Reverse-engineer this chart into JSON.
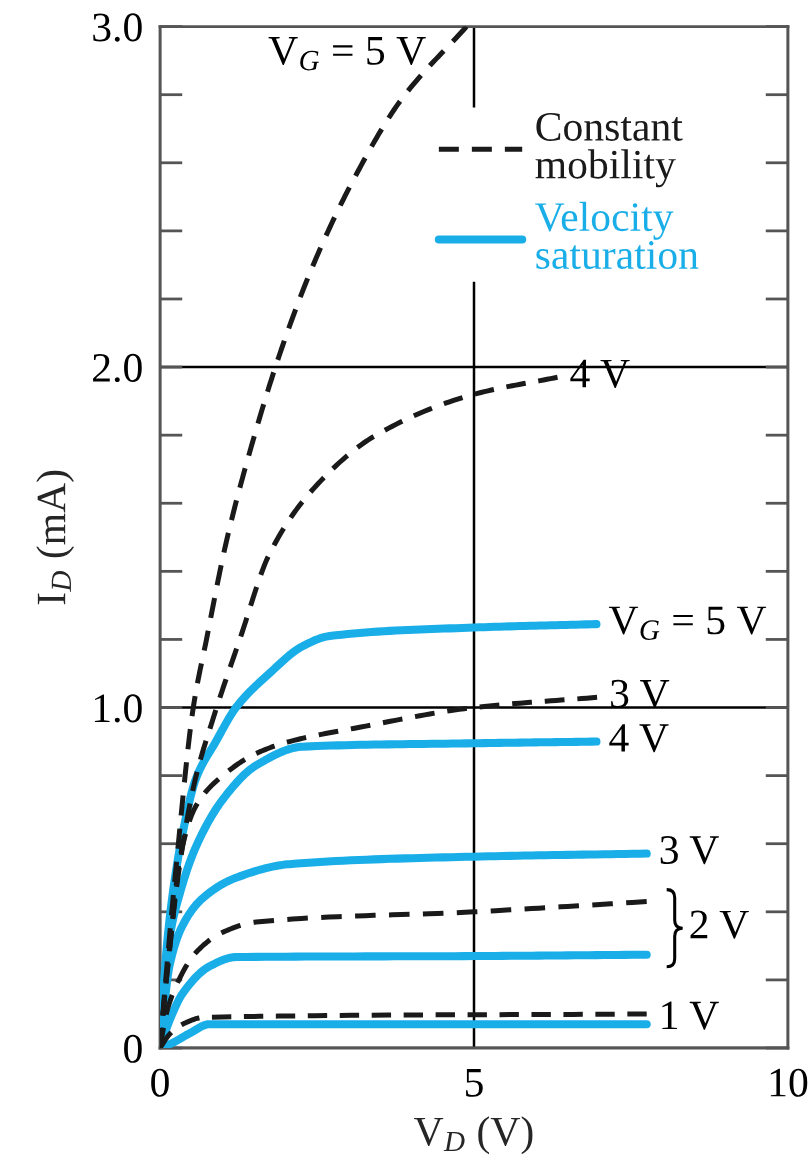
{
  "chart_data": {
    "type": "line",
    "xlabel": "V$_{D}$ (V)",
    "ylabel": "I$_{D}$ (mA)",
    "xlim": [
      0,
      10
    ],
    "ylim": [
      0,
      3
    ],
    "xticks": [
      0,
      5,
      10
    ],
    "yticks": [
      0,
      {
        "value": 0.2,
        "label": null
      },
      {
        "value": 0.4,
        "label": null
      },
      {
        "value": 0.6,
        "label": null
      },
      {
        "value": 0.8,
        "label": null
      },
      {
        "value": 1,
        "label": "1.0"
      },
      {
        "value": 1.2,
        "label": null
      },
      {
        "value": 1.4,
        "label": null
      },
      {
        "value": 1.6,
        "label": null
      },
      {
        "value": 1.8,
        "label": null
      },
      {
        "value": 2,
        "label": "2.0"
      },
      {
        "value": 2.2,
        "label": null
      },
      {
        "value": 2.4,
        "label": null
      },
      {
        "value": 2.6,
        "label": null
      },
      {
        "value": 2.8,
        "label": null
      },
      {
        "value": 3,
        "label": "3.0"
      }
    ],
    "grid": true,
    "legend": "top right",
    "marker": "none",
    "series": [
      {
        "name": "Constant\nmobility",
        "color": "#1a1a1a",
        "line_style": "dashed",
        "x": [
          0,
          0.1,
          0.25,
          0.53,
          0.74,
          1.06,
          1.49,
          1.91,
          2.44,
          3.08,
          3.82,
          4.88
        ],
        "values": [
          0,
          0.22,
          0.52,
          1.0,
          1.2,
          1.49,
          1.79,
          2.04,
          2.3,
          2.55,
          2.78,
          3.0
        ]
      },
      {
        "color": "#1a1a1a",
        "line_style": "dashed",
        "x": [
          0,
          0.1,
          0.3,
          0.55,
          0.85,
          1.27,
          1.74,
          2.48,
          3.44,
          5.0,
          6.33
        ],
        "values": [
          0,
          0.2,
          0.52,
          0.78,
          0.97,
          1.2,
          1.45,
          1.65,
          1.8,
          1.92,
          1.97
        ]
      },
      {
        "color": "#1a1a1a",
        "line_style": "dashed",
        "x": [
          0,
          0.08,
          0.16,
          0.31,
          0.57,
          1.0,
          1.53,
          2.06,
          3.12,
          5.0,
          6.96
        ],
        "values": [
          0,
          0.16,
          0.3,
          0.55,
          0.71,
          0.8,
          0.865,
          0.9,
          0.94,
          1.0,
          1.03
        ]
      },
      {
        "color": "#1a1a1a",
        "line_style": "dashed",
        "x": [
          0,
          0.1,
          0.25,
          0.57,
          1.0,
          1.53,
          5.0,
          7.75
        ],
        "values": [
          0,
          0.1,
          0.18,
          0.28,
          0.34,
          0.37,
          0.4,
          0.43
        ]
      },
      {
        "color": "#1a1a1a",
        "line_style": "dashed",
        "x": [
          0,
          0.15,
          0.36,
          0.7,
          7.75
        ],
        "values": [
          0,
          0.04,
          0.07,
          0.09,
          0.1
        ]
      },
      {
        "name": "Velocity\nsaturation",
        "color": "#19aee8",
        "line_style": "solid",
        "x": [
          0,
          0.1,
          0.2,
          0.36,
          0.57,
          0.89,
          1.21,
          1.74,
          2.27,
          2.7,
          5.0,
          6.95
        ],
        "values": [
          0,
          0.28,
          0.45,
          0.63,
          0.79,
          0.9,
          1.0,
          1.1,
          1.18,
          1.21,
          1.235,
          1.245
        ]
      },
      {
        "color": "#19aee8",
        "line_style": "solid",
        "x": [
          0,
          0.15,
          0.31,
          0.57,
          1.0,
          1.53,
          2.27,
          5.0,
          6.95
        ],
        "values": [
          0,
          0.32,
          0.45,
          0.59,
          0.73,
          0.83,
          0.885,
          0.895,
          0.9
        ]
      },
      {
        "color": "#19aee8",
        "line_style": "solid",
        "x": [
          0,
          0.15,
          0.36,
          0.68,
          1.21,
          2.06,
          5.0,
          7.75
        ],
        "values": [
          0,
          0.24,
          0.36,
          0.44,
          0.5,
          0.54,
          0.562,
          0.571
        ]
      },
      {
        "color": "#19aee8",
        "line_style": "solid",
        "x": [
          0,
          0.15,
          0.36,
          0.79,
          1.21,
          5.0,
          7.75
        ],
        "values": [
          0,
          0.08,
          0.16,
          0.24,
          0.267,
          0.27,
          0.274
        ]
      },
      {
        "color": "#19aee8",
        "line_style": "solid",
        "x": [
          0,
          0.2,
          0.47,
          0.79,
          7.75
        ],
        "values": [
          0,
          0.015,
          0.043,
          0.07,
          0.07
        ]
      }
    ],
    "annotations": [
      {
        "text": "V$_{G}$ = 5 V",
        "x": 4.88,
        "y": 3.0
      },
      {
        "text": "4 V",
        "x": 6.33,
        "y": 1.97
      },
      {
        "text": "V$_{G}$ = 5 V",
        "x": 6.95,
        "y": 1.245
      },
      {
        "text": "3 V",
        "x": 6.96,
        "y": 1.03
      },
      {
        "text": "4 V",
        "x": 6.95,
        "y": 0.9
      },
      {
        "text": "3 V",
        "x": 7.75,
        "y": 0.571
      },
      {
        "text": "2 V",
        "x": 7.75,
        "y": 0.43
      },
      {
        "text": "1 V",
        "x": 7.75,
        "y": 0.1
      }
    ]
  }
}
